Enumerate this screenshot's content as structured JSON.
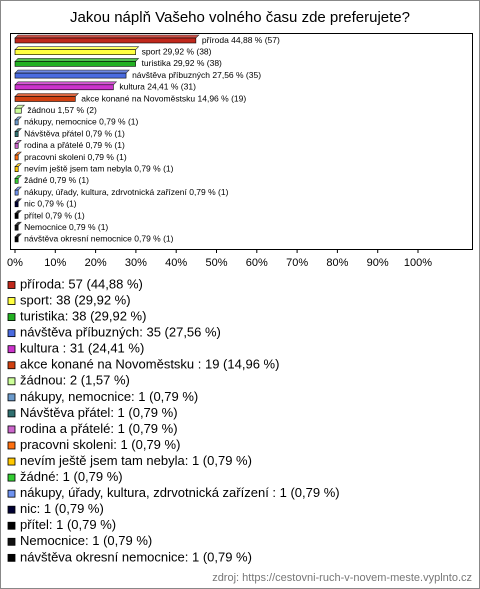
{
  "chart_data": {
    "type": "bar",
    "orientation": "horizontal",
    "title": "Jakou náplň Vašeho volného času zde preferujete?",
    "categories": [
      "příroda",
      "sport",
      "turistika",
      "návštěva příbuzných",
      "kultura",
      "akce konané na Novoměstsku",
      "žádnou",
      "nákupy, nemocnice",
      "Návštěva přátel",
      "rodina a přátelé",
      "pracovni skoleni",
      "nevím ještě jsem tam nebyla",
      "žádné",
      "nákupy, úřady, kultura, zdrvotnická zařízení",
      "nic",
      "přítel",
      "Nemocnice",
      "návštěva okresní nemocnice"
    ],
    "values": [
      44.88,
      29.92,
      29.92,
      27.56,
      24.41,
      14.96,
      1.57,
      0.79,
      0.79,
      0.79,
      0.79,
      0.79,
      0.79,
      0.79,
      0.79,
      0.79,
      0.79,
      0.79
    ],
    "value_labels": [
      "příroda 44,88 % (57)",
      "sport 29,92 % (38)",
      "turistika 29,92 % (38)",
      "návštěva příbuzných 27,56 % (35)",
      "kultura  24,41 % (31)",
      "akce konané na Novoměstsku  14,96 % (19)",
      "žádnou 1,57 % (2)",
      "nákupy, nemocnice 0,79 % (1)",
      "Návštěva přátel 0,79 % (1)",
      "rodina a přátelé 0,79 % (1)",
      "pracovni skoleni 0,79 % (1)",
      "nevím ještě jsem tam nebyla 0,79 % (1)",
      "žádné 0,79 % (1)",
      "nákupy, úřady, kultura, zdrvotnická zařízení  0,79 % (1)",
      "nic 0,79 % (1)",
      "přítel 0,79 % (1)",
      "Nemocnice 0,79 % (1)",
      "návštěva okresní nemocnice 0,79 % (1)"
    ],
    "legend_labels": [
      "příroda: 57 (44,88 %)",
      "sport: 38 (29,92 %)",
      "turistika: 38 (29,92 %)",
      "návštěva příbuzných: 35 (27,56 %)",
      "kultura : 31 (24,41 %)",
      "akce konané na Novoměstsku : 19 (14,96 %)",
      "žádnou: 2 (1,57 %)",
      "nákupy, nemocnice: 1 (0,79 %)",
      "Návštěva přátel: 1 (0,79 %)",
      "rodina a přátelé: 1 (0,79 %)",
      "pracovni skoleni: 1 (0,79 %)",
      "nevím ještě jsem tam nebyla: 1 (0,79 %)",
      "žádné: 1 (0,79 %)",
      "nákupy, úřady, kultura, zdrvotnická zaří­zení : 1 (0,79 %)",
      "nic: 1 (0,79 %)",
      "přítel: 1 (0,79 %)",
      "Nemocnice: 1 (0,79 %)",
      "návštěva okresní nemocnice: 1 (0,79 %)"
    ],
    "colors": [
      "#c0281c",
      "#ffff40",
      "#22b022",
      "#4a6be0",
      "#cc33cc",
      "#d04010",
      "#ccff99",
      "#6b9acb",
      "#2f6f6f",
      "#cc66cc",
      "#ff7010",
      "#ffc800",
      "#33cc33",
      "#6f93f0",
      "#000033",
      "#000000",
      "#111111",
      "#000000"
    ],
    "xlim": [
      0,
      100
    ],
    "xticks": [
      {
        "value": 0,
        "label": "0%"
      },
      {
        "value": 10,
        "label": "10%"
      },
      {
        "value": 20,
        "label": "20%"
      },
      {
        "value": 30,
        "label": "30%"
      },
      {
        "value": 40,
        "label": "40%"
      },
      {
        "value": 50,
        "label": "50%"
      },
      {
        "value": 60,
        "label": "60%"
      },
      {
        "value": 70,
        "label": "70%"
      },
      {
        "value": 80,
        "label": "80%"
      },
      {
        "value": 90,
        "label": "90%"
      },
      {
        "value": 100,
        "label": "100%"
      }
    ],
    "source": "zdroj: https://cestovni-ruch-v-novem-meste.vyplnto.cz"
  }
}
